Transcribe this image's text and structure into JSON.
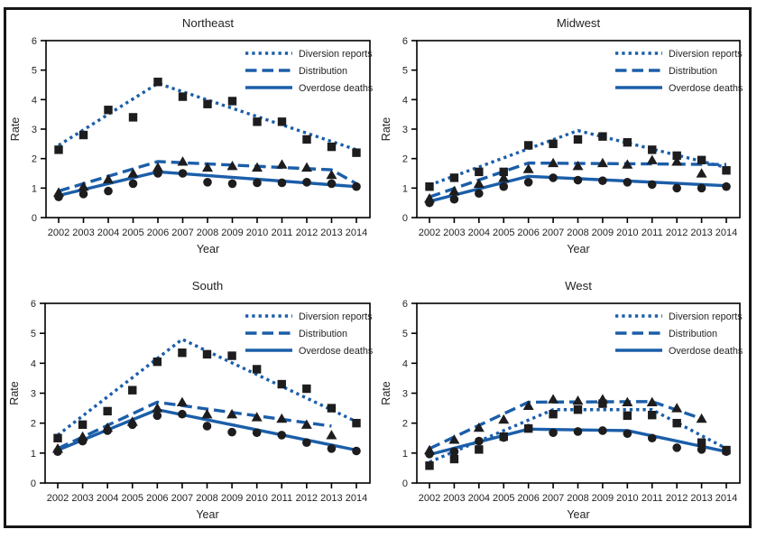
{
  "figure_title": "",
  "chart_data": {
    "type": "line",
    "x": [
      2002,
      2003,
      2004,
      2005,
      2006,
      2007,
      2008,
      2009,
      2010,
      2011,
      2012,
      2013,
      2014
    ],
    "xlabel": "Year",
    "ylabel": "Rate",
    "ylim": [
      0,
      6
    ],
    "y_ticks": [
      0,
      1,
      2,
      3,
      4,
      5,
      6
    ],
    "grid": "off",
    "legend_position": "top-right-inside",
    "colors": {
      "line_blue": "#1b5ea9",
      "marker_black": "#1d1d1f",
      "text": "#231f20",
      "frame": "#000000",
      "background": "#ffffff"
    },
    "legend": [
      {
        "label": "Diversion reports",
        "line_style": "dotted",
        "marker": "square"
      },
      {
        "label": "Distribution",
        "line_style": "dashed",
        "marker": "triangle"
      },
      {
        "label": "Overdose deaths",
        "line_style": "solid",
        "marker": "circle"
      }
    ],
    "panels": [
      {
        "title": "Northeast",
        "grid_position": "top-left",
        "series": [
          {
            "name": "Diversion reports",
            "line_style": "dotted",
            "marker": "square",
            "markers": [
              2.3,
              2.8,
              3.65,
              3.4,
              4.6,
              4.1,
              3.85,
              3.95,
              3.25,
              3.25,
              2.65,
              2.4,
              2.2
            ],
            "trend": [
              [
                2002,
                2.45
              ],
              [
                2006,
                4.55
              ],
              [
                2014,
                2.3
              ]
            ]
          },
          {
            "name": "Distribution",
            "line_style": "dashed",
            "marker": "triangle",
            "markers": [
              0.85,
              1.05,
              1.3,
              1.5,
              1.7,
              1.9,
              1.7,
              1.75,
              1.7,
              1.8,
              1.7,
              1.45,
              null
            ],
            "trend": [
              [
                2002,
                0.9
              ],
              [
                2006,
                1.9
              ],
              [
                2013,
                1.62
              ],
              [
                2014,
                1.15
              ]
            ]
          },
          {
            "name": "Overdose deaths",
            "line_style": "solid",
            "marker": "circle",
            "markers": [
              0.7,
              0.8,
              0.9,
              1.15,
              1.5,
              1.5,
              1.2,
              1.15,
              1.18,
              1.18,
              1.2,
              1.15,
              1.05
            ],
            "trend": [
              [
                2002,
                0.75
              ],
              [
                2006,
                1.55
              ],
              [
                2014,
                1.05
              ]
            ]
          }
        ]
      },
      {
        "title": "Midwest",
        "grid_position": "top-right",
        "series": [
          {
            "name": "Diversion reports",
            "line_style": "dotted",
            "marker": "square",
            "markers": [
              1.05,
              1.35,
              1.55,
              1.55,
              2.45,
              2.5,
              2.65,
              2.75,
              2.55,
              2.3,
              2.1,
              1.95,
              1.6
            ],
            "trend": [
              [
                2002,
                1.1
              ],
              [
                2008,
                2.95
              ],
              [
                2014,
                1.7
              ]
            ]
          },
          {
            "name": "Distribution",
            "line_style": "dashed",
            "marker": "triangle",
            "markers": [
              0.65,
              0.9,
              1.15,
              1.35,
              1.65,
              1.85,
              1.75,
              1.85,
              1.8,
              1.95,
              1.9,
              1.5,
              null
            ],
            "trend": [
              [
                2002,
                0.7
              ],
              [
                2006,
                1.85
              ],
              [
                2014,
                1.8
              ]
            ]
          },
          {
            "name": "Overdose deaths",
            "line_style": "solid",
            "marker": "circle",
            "markers": [
              0.5,
              0.62,
              0.82,
              1.05,
              1.2,
              1.35,
              1.27,
              1.25,
              1.2,
              1.12,
              1.0,
              1.0,
              1.05
            ],
            "trend": [
              [
                2002,
                0.55
              ],
              [
                2006,
                1.4
              ],
              [
                2014,
                1.08
              ]
            ]
          }
        ]
      },
      {
        "title": "South",
        "grid_position": "bottom-left",
        "series": [
          {
            "name": "Diversion reports",
            "line_style": "dotted",
            "marker": "square",
            "markers": [
              1.5,
              1.95,
              2.4,
              3.1,
              4.05,
              4.35,
              4.3,
              4.25,
              3.8,
              3.3,
              3.15,
              2.5,
              2.0
            ],
            "trend": [
              [
                2002,
                1.6
              ],
              [
                2007,
                4.8
              ],
              [
                2014,
                2.05
              ]
            ]
          },
          {
            "name": "Distribution",
            "line_style": "dashed",
            "marker": "triangle",
            "markers": [
              1.15,
              1.55,
              1.85,
              2.05,
              2.5,
              2.7,
              2.3,
              2.3,
              2.2,
              2.15,
              1.95,
              1.6,
              null
            ],
            "trend": [
              [
                2002,
                1.15
              ],
              [
                2006,
                2.7
              ],
              [
                2013,
                1.9
              ]
            ]
          },
          {
            "name": "Overdose deaths",
            "line_style": "solid",
            "marker": "circle",
            "markers": [
              1.05,
              1.4,
              1.75,
              1.95,
              2.25,
              2.3,
              1.9,
              1.7,
              1.68,
              1.6,
              1.35,
              1.15,
              1.07
            ],
            "trend": [
              [
                2002,
                1.1
              ],
              [
                2006,
                2.45
              ],
              [
                2014,
                1.1
              ]
            ]
          }
        ]
      },
      {
        "title": "West",
        "grid_position": "bottom-right",
        "series": [
          {
            "name": "Diversion reports",
            "line_style": "dotted",
            "marker": "square",
            "markers": [
              0.58,
              0.8,
              1.12,
              1.55,
              1.82,
              2.3,
              2.45,
              2.65,
              2.25,
              2.27,
              2.0,
              1.35,
              1.1
            ],
            "trend": [
              [
                2002,
                0.7
              ],
              [
                2007,
                2.45
              ],
              [
                2011,
                2.45
              ],
              [
                2014,
                1.15
              ]
            ]
          },
          {
            "name": "Distribution",
            "line_style": "dashed",
            "marker": "triangle",
            "markers": [
              1.1,
              1.45,
              1.85,
              2.12,
              2.58,
              2.8,
              2.75,
              2.8,
              2.7,
              2.7,
              2.5,
              2.15,
              null
            ],
            "trend": [
              [
                2002,
                1.15
              ],
              [
                2006,
                2.7
              ],
              [
                2011,
                2.72
              ],
              [
                2013,
                2.15
              ]
            ]
          },
          {
            "name": "Overdose deaths",
            "line_style": "solid",
            "marker": "circle",
            "markers": [
              0.97,
              1.05,
              1.4,
              1.52,
              1.83,
              1.68,
              1.72,
              1.75,
              1.65,
              1.5,
              1.18,
              1.12,
              1.05
            ],
            "trend": [
              [
                2002,
                0.95
              ],
              [
                2006,
                1.8
              ],
              [
                2010,
                1.75
              ],
              [
                2014,
                1.05
              ]
            ]
          }
        ]
      }
    ]
  }
}
